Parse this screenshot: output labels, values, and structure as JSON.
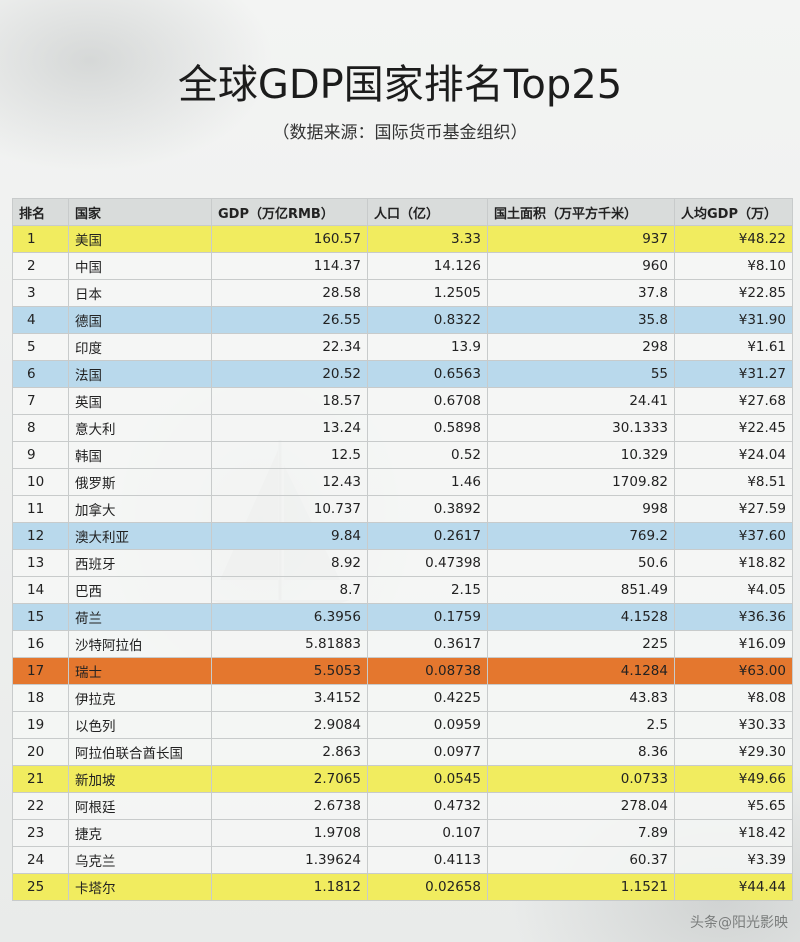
{
  "title": "全球GDP国家排名Top25",
  "subtitle": "（数据来源：国际货币基金组织）",
  "watermark": "头条@阳光影映",
  "table": {
    "headers": [
      "排名",
      "国家",
      "GDP（万亿RMB）",
      "人口（亿）",
      "国土面积（万平方千米）",
      "人均GDP（万）"
    ],
    "highlight_colors": {
      "yellow": "#f1ec5f",
      "blue": "#b9d9ec",
      "orange": "#e4772e"
    },
    "rows": [
      {
        "rank": "1",
        "country": "美国",
        "gdp": "160.57",
        "pop": "3.33",
        "area": "937",
        "per": "¥48.22",
        "hl": "yellow"
      },
      {
        "rank": "2",
        "country": "中国",
        "gdp": "114.37",
        "pop": "14.126",
        "area": "960",
        "per": "¥8.10",
        "hl": ""
      },
      {
        "rank": "3",
        "country": "日本",
        "gdp": "28.58",
        "pop": "1.2505",
        "area": "37.8",
        "per": "¥22.85",
        "hl": ""
      },
      {
        "rank": "4",
        "country": "德国",
        "gdp": "26.55",
        "pop": "0.8322",
        "area": "35.8",
        "per": "¥31.90",
        "hl": "blue"
      },
      {
        "rank": "5",
        "country": "印度",
        "gdp": "22.34",
        "pop": "13.9",
        "area": "298",
        "per": "¥1.61",
        "hl": ""
      },
      {
        "rank": "6",
        "country": "法国",
        "gdp": "20.52",
        "pop": "0.6563",
        "area": "55",
        "per": "¥31.27",
        "hl": "blue"
      },
      {
        "rank": "7",
        "country": "英国",
        "gdp": "18.57",
        "pop": "0.6708",
        "area": "24.41",
        "per": "¥27.68",
        "hl": ""
      },
      {
        "rank": "8",
        "country": "意大利",
        "gdp": "13.24",
        "pop": "0.5898",
        "area": "30.1333",
        "per": "¥22.45",
        "hl": ""
      },
      {
        "rank": "9",
        "country": "韩国",
        "gdp": "12.5",
        "pop": "0.52",
        "area": "10.329",
        "per": "¥24.04",
        "hl": ""
      },
      {
        "rank": "10",
        "country": "俄罗斯",
        "gdp": "12.43",
        "pop": "1.46",
        "area": "1709.82",
        "per": "¥8.51",
        "hl": ""
      },
      {
        "rank": "11",
        "country": "加拿大",
        "gdp": "10.737",
        "pop": "0.3892",
        "area": "998",
        "per": "¥27.59",
        "hl": ""
      },
      {
        "rank": "12",
        "country": "澳大利亚",
        "gdp": "9.84",
        "pop": "0.2617",
        "area": "769.2",
        "per": "¥37.60",
        "hl": "blue"
      },
      {
        "rank": "13",
        "country": "西班牙",
        "gdp": "8.92",
        "pop": "0.47398",
        "area": "50.6",
        "per": "¥18.82",
        "hl": ""
      },
      {
        "rank": "14",
        "country": "巴西",
        "gdp": "8.7",
        "pop": "2.15",
        "area": "851.49",
        "per": "¥4.05",
        "hl": ""
      },
      {
        "rank": "15",
        "country": "荷兰",
        "gdp": "6.3956",
        "pop": "0.1759",
        "area": "4.1528",
        "per": "¥36.36",
        "hl": "blue"
      },
      {
        "rank": "16",
        "country": "沙特阿拉伯",
        "gdp": "5.81883",
        "pop": "0.3617",
        "area": "225",
        "per": "¥16.09",
        "hl": ""
      },
      {
        "rank": "17",
        "country": "瑞士",
        "gdp": "5.5053",
        "pop": "0.08738",
        "area": "4.1284",
        "per": "¥63.00",
        "hl": "orange"
      },
      {
        "rank": "18",
        "country": "伊拉克",
        "gdp": "3.4152",
        "pop": "0.4225",
        "area": "43.83",
        "per": "¥8.08",
        "hl": ""
      },
      {
        "rank": "19",
        "country": "以色列",
        "gdp": "2.9084",
        "pop": "0.0959",
        "area": "2.5",
        "per": "¥30.33",
        "hl": ""
      },
      {
        "rank": "20",
        "country": "阿拉伯联合酋长国",
        "gdp": "2.863",
        "pop": "0.0977",
        "area": "8.36",
        "per": "¥29.30",
        "hl": ""
      },
      {
        "rank": "21",
        "country": "新加坡",
        "gdp": "2.7065",
        "pop": "0.0545",
        "area": "0.0733",
        "per": "¥49.66",
        "hl": "yellow"
      },
      {
        "rank": "22",
        "country": "阿根廷",
        "gdp": "2.6738",
        "pop": "0.4732",
        "area": "278.04",
        "per": "¥5.65",
        "hl": ""
      },
      {
        "rank": "23",
        "country": "捷克",
        "gdp": "1.9708",
        "pop": "0.107",
        "area": "7.89",
        "per": "¥18.42",
        "hl": ""
      },
      {
        "rank": "24",
        "country": "乌克兰",
        "gdp": "1.39624",
        "pop": "0.4113",
        "area": "60.37",
        "per": "¥3.39",
        "hl": ""
      },
      {
        "rank": "25",
        "country": "卡塔尔",
        "gdp": "1.1812",
        "pop": "0.02658",
        "area": "1.1521",
        "per": "¥44.44",
        "hl": "yellow"
      }
    ]
  }
}
